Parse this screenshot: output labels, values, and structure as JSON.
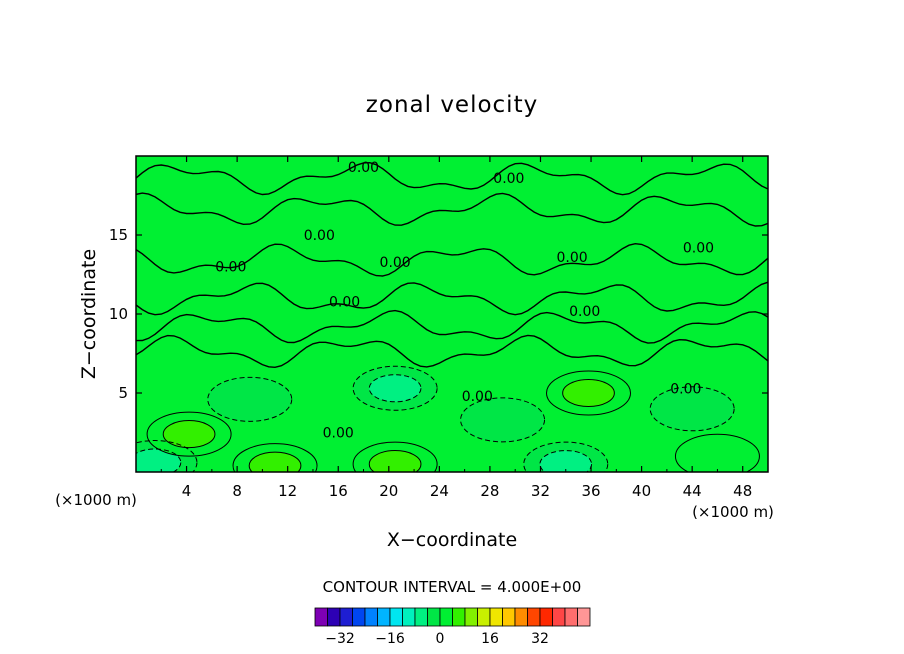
{
  "chart_data": {
    "type": "heatmap",
    "title": "zonal velocity",
    "xlabel": "X−coordinate",
    "ylabel": "Z−coordinate",
    "x_unit": "(×1000 m)",
    "z_unit": "(×1000 m)",
    "xlim": [
      0,
      50
    ],
    "ylim": [
      0,
      20
    ],
    "x_ticks": [
      4,
      8,
      12,
      16,
      20,
      24,
      28,
      32,
      36,
      40,
      44,
      48
    ],
    "y_ticks": [
      5,
      10,
      15
    ],
    "contour_interval_label": "CONTOUR INTERVAL = 4.000E+00",
    "contour_interval": 4.0,
    "zero_contour_label": "0.00",
    "colorbar": {
      "colors": [
        "#7d00b4",
        "#2d00b4",
        "#1e1ed2",
        "#0046f0",
        "#0082ff",
        "#00b4ff",
        "#00e6f0",
        "#00f0be",
        "#00f082",
        "#00e646",
        "#00f032",
        "#32f000",
        "#82f000",
        "#c8f000",
        "#f0e600",
        "#ffc800",
        "#ff8c00",
        "#ff4600",
        "#ff2800",
        "#ff4646",
        "#ff6e6e",
        "#ff9696"
      ],
      "tick_labels": [
        "−32",
        "−16",
        "0",
        "16",
        "32"
      ],
      "tick_values": [
        -32,
        -16,
        0,
        16,
        32
      ],
      "range": [
        -40,
        48
      ]
    },
    "features": [
      {
        "x": 20.5,
        "z": 5.3,
        "value": -8,
        "kind": "min"
      },
      {
        "x": 34.0,
        "z": 0.5,
        "value": -8,
        "kind": "min"
      },
      {
        "x": 1.5,
        "z": 0.6,
        "value": -8,
        "kind": "min"
      },
      {
        "x": 9.0,
        "z": 4.6,
        "value": -4,
        "kind": "min"
      },
      {
        "x": 44.0,
        "z": 4.0,
        "value": -4,
        "kind": "min"
      },
      {
        "x": 29.0,
        "z": 3.3,
        "value": -4,
        "kind": "min"
      },
      {
        "x": 4.2,
        "z": 2.4,
        "value": 8,
        "kind": "max"
      },
      {
        "x": 20.5,
        "z": 0.5,
        "value": 8,
        "kind": "max"
      },
      {
        "x": 11.0,
        "z": 0.4,
        "value": 8,
        "kind": "max"
      },
      {
        "x": 35.8,
        "z": 5.0,
        "value": 8,
        "kind": "max"
      },
      {
        "x": 46.0,
        "z": 1.0,
        "value": 4,
        "kind": "max"
      }
    ]
  }
}
